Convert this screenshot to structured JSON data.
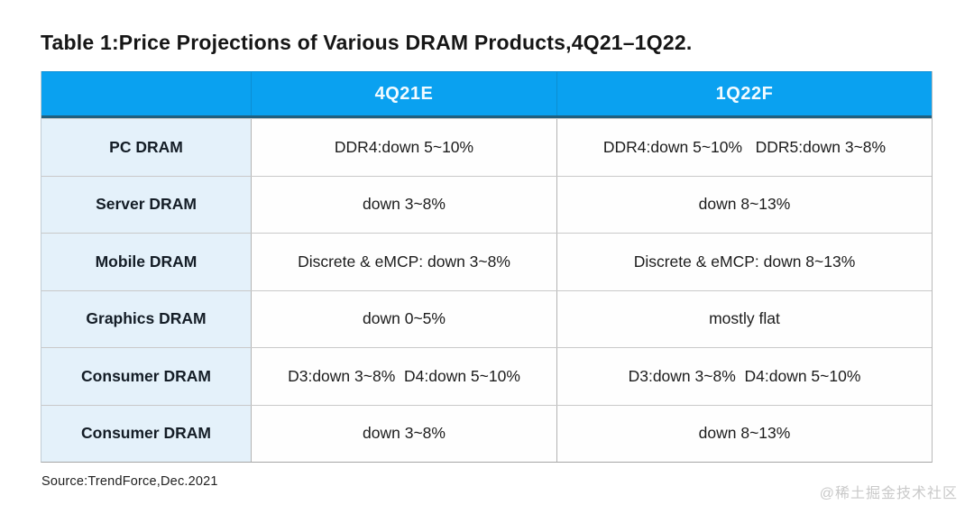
{
  "title": "Table 1:Price Projections of Various DRAM Products,4Q21–1Q22.",
  "source": "Source:TrendForce,Dec.2021",
  "watermark": "@稀土掘金技术社区",
  "colors": {
    "header_bg": "#0aa1f0",
    "header_text": "#ffffff",
    "header_bottom_border": "#215f7d",
    "label_cell_bg": "#e4f1fa",
    "grid_line": "#c9c9c9",
    "watermark_text": "#c9c9c9"
  },
  "table": {
    "columns": [
      "",
      "4Q21E",
      "1Q22F"
    ],
    "rows": [
      {
        "label": "PC DRAM",
        "cells": [
          "DDR4:down 5~10%",
          "DDR4:down 5~10%   DDR5:down 3~8%"
        ]
      },
      {
        "label": "Server DRAM",
        "cells": [
          "down 3~8%",
          "down 8~13%"
        ]
      },
      {
        "label": "Mobile DRAM",
        "cells": [
          "Discrete & eMCP: down 3~8%",
          "Discrete & eMCP: down 8~13%"
        ]
      },
      {
        "label": "Graphics DRAM",
        "cells": [
          "down 0~5%",
          "mostly flat"
        ]
      },
      {
        "label": "Consumer DRAM",
        "cells": [
          "D3:down 3~8%  D4:down 5~10%",
          "D3:down 3~8%  D4:down 5~10%"
        ]
      },
      {
        "label": "Consumer DRAM",
        "cells": [
          "down 3~8%",
          "down 8~13%"
        ]
      }
    ]
  },
  "chart_data": {
    "type": "table",
    "title": "Table 1:Price Projections of Various DRAM Products,4Q21–1Q22.",
    "columns": [
      "Product",
      "4Q21E",
      "1Q22F"
    ],
    "rows": [
      [
        "PC DRAM",
        "DDR4:down 5~10%",
        "DDR4:down 5~10% / DDR5:down 3~8%"
      ],
      [
        "Server DRAM",
        "down 3~8%",
        "down 8~13%"
      ],
      [
        "Mobile DRAM",
        "Discrete & eMCP: down 3~8%",
        "Discrete & eMCP: down 8~13%"
      ],
      [
        "Graphics DRAM",
        "down 0~5%",
        "mostly flat"
      ],
      [
        "Consumer DRAM",
        "D3:down 3~8% / D4:down 5~10%",
        "D3:down 3~8% / D4:down 5~10%"
      ],
      [
        "Consumer DRAM",
        "down 3~8%",
        "down 8~13%"
      ]
    ],
    "source": "Source:TrendForce,Dec.2021"
  }
}
